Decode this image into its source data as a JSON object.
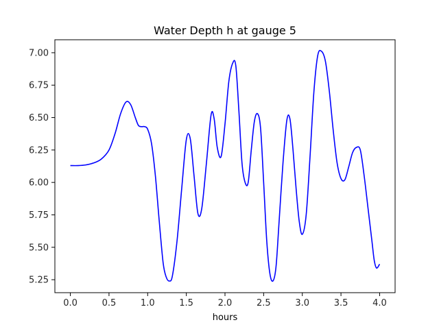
{
  "chart_data": {
    "type": "line",
    "title": "Water Depth h at gauge 5",
    "xlabel": "hours",
    "ylabel": "",
    "xlim": [
      -0.2,
      4.2
    ],
    "ylim": [
      5.15,
      7.1
    ],
    "x_ticks": [
      0.0,
      0.5,
      1.0,
      1.5,
      2.0,
      2.5,
      3.0,
      3.5,
      4.0
    ],
    "x_tick_labels": [
      "0.0",
      "0.5",
      "1.0",
      "1.5",
      "2.0",
      "2.5",
      "3.0",
      "3.5",
      "4.0"
    ],
    "y_ticks": [
      5.25,
      5.5,
      5.75,
      6.0,
      6.25,
      6.5,
      6.75,
      7.0
    ],
    "y_tick_labels": [
      "5.25",
      "5.50",
      "5.75",
      "6.00",
      "6.25",
      "6.50",
      "6.75",
      "7.00"
    ],
    "grid": false,
    "legend": "none",
    "series": [
      {
        "color": "#0000ff",
        "x": [
          0.0,
          0.1,
          0.2,
          0.3,
          0.4,
          0.5,
          0.58,
          0.65,
          0.72,
          0.78,
          0.84,
          0.88,
          0.92,
          0.96,
          1.0,
          1.05,
          1.1,
          1.15,
          1.2,
          1.24,
          1.28,
          1.32,
          1.38,
          1.44,
          1.5,
          1.55,
          1.6,
          1.65,
          1.7,
          1.76,
          1.82,
          1.86,
          1.9,
          1.95,
          2.0,
          2.05,
          2.1,
          2.14,
          2.18,
          2.22,
          2.26,
          2.3,
          2.34,
          2.38,
          2.42,
          2.46,
          2.5,
          2.54,
          2.58,
          2.62,
          2.66,
          2.7,
          2.75,
          2.8,
          2.84,
          2.88,
          2.92,
          2.96,
          3.0,
          3.05,
          3.1,
          3.15,
          3.2,
          3.25,
          3.3,
          3.35,
          3.4,
          3.45,
          3.5,
          3.55,
          3.6,
          3.65,
          3.7,
          3.75,
          3.8,
          3.85,
          3.9,
          3.93,
          3.96,
          4.0
        ],
        "y": [
          6.13,
          6.13,
          6.135,
          6.15,
          6.18,
          6.25,
          6.38,
          6.53,
          6.62,
          6.6,
          6.5,
          6.44,
          6.43,
          6.43,
          6.41,
          6.3,
          6.05,
          5.7,
          5.38,
          5.27,
          5.24,
          5.28,
          5.55,
          5.95,
          6.33,
          6.34,
          6.05,
          5.76,
          5.8,
          6.15,
          6.52,
          6.49,
          6.27,
          6.2,
          6.45,
          6.78,
          6.92,
          6.9,
          6.55,
          6.15,
          6.0,
          6.0,
          6.25,
          6.47,
          6.53,
          6.42,
          6.0,
          5.55,
          5.3,
          5.24,
          5.35,
          5.7,
          6.15,
          6.48,
          6.49,
          6.25,
          5.95,
          5.7,
          5.6,
          5.75,
          6.2,
          6.7,
          6.98,
          7.01,
          6.93,
          6.7,
          6.4,
          6.15,
          6.03,
          6.02,
          6.12,
          6.23,
          6.27,
          6.25,
          6.05,
          5.8,
          5.55,
          5.4,
          5.34,
          5.37
        ]
      }
    ]
  }
}
